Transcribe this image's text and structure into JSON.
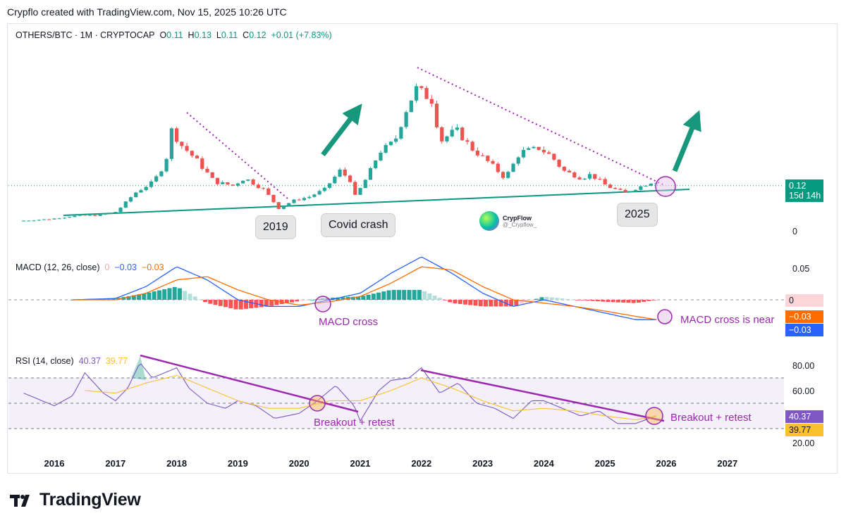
{
  "header": {
    "title": "Crypflo created with TradingView.com, Nov 15, 2025 10:26 UTC"
  },
  "legend": {
    "symbol": "OTHERS/BTC · 1M · CRYPTOCAP",
    "o_label": "O",
    "o_value": "0.11",
    "h_label": "H",
    "h_value": "0.13",
    "l_label": "L",
    "l_value": "0.11",
    "c_label": "C",
    "c_value": "0.12",
    "change": "+0.01 (+7.83%)"
  },
  "macd_legend": {
    "name": "MACD (12, 26, close)",
    "hist": "0",
    "macd": "−0.03",
    "signal": "−0.03"
  },
  "rsi_legend": {
    "name": "RSI (14, close)",
    "rsi": "40.37",
    "ma": "39.77"
  },
  "price_tag": {
    "value": "0.12",
    "countdown": "15d 14h"
  },
  "axes": {
    "price_zero": "0",
    "macd_ticks": [
      "0.05",
      "0"
    ],
    "macd_tags": [
      "−0.03",
      "−0.03"
    ],
    "rsi_ticks": [
      "80.00",
      "60.00",
      "20.00"
    ],
    "rsi_tags": [
      "40.37",
      "39.77"
    ]
  },
  "callouts": {
    "c2019": "2019",
    "covid": "Covid crash",
    "c2025": "2025"
  },
  "annotations": {
    "macd_cross": "MACD cross",
    "macd_near": "MACD cross is near",
    "breakout1": "Breakout + retest",
    "breakout2": "Breakout + retest"
  },
  "watermark": {
    "name": "CrypFlow",
    "handle": "@_Crypflow_"
  },
  "footer": {
    "brand": "TradingView"
  },
  "colors": {
    "up": "#26a69a",
    "down": "#ef5350",
    "teal": "#089981",
    "purple": "#9c27b0",
    "rsi": "#7e57c2",
    "rsi_ma": "#fbc02d",
    "macd": "#2962ff",
    "signal": "#ff6d00"
  },
  "chart_data": {
    "type": "candlestick",
    "title": "OTHERS/BTC · 1M · CRYPTOCAP",
    "x_axis_years": [
      "2016",
      "2017",
      "2018",
      "2019",
      "2020",
      "2021",
      "2022",
      "2023",
      "2024",
      "2025",
      "2026",
      "2027"
    ],
    "ohlc_last": {
      "open": 0.11,
      "high": 0.13,
      "low": 0.11,
      "close": 0.12,
      "change": 0.01,
      "change_pct": 7.83
    },
    "price_path_keypoints": [
      [
        2015.5,
        0.015
      ],
      [
        2016.0,
        0.02
      ],
      [
        2016.5,
        0.03
      ],
      [
        2016.8,
        0.03
      ],
      [
        2017.1,
        0.04
      ],
      [
        2017.4,
        0.09
      ],
      [
        2017.7,
        0.12
      ],
      [
        2017.9,
        0.17
      ],
      [
        2018.0,
        0.26
      ],
      [
        2018.15,
        0.22
      ],
      [
        2018.4,
        0.18
      ],
      [
        2018.7,
        0.12
      ],
      [
        2019.0,
        0.11
      ],
      [
        2019.2,
        0.13
      ],
      [
        2019.5,
        0.1
      ],
      [
        2019.75,
        0.05
      ],
      [
        2020.0,
        0.07
      ],
      [
        2020.25,
        0.08
      ],
      [
        2020.5,
        0.1
      ],
      [
        2020.75,
        0.15
      ],
      [
        2020.95,
        0.12
      ],
      [
        2021.0,
        0.08
      ],
      [
        2021.15,
        0.12
      ],
      [
        2021.4,
        0.2
      ],
      [
        2021.65,
        0.23
      ],
      [
        2021.85,
        0.32
      ],
      [
        2022.0,
        0.37
      ],
      [
        2022.25,
        0.34
      ],
      [
        2022.4,
        0.23
      ],
      [
        2022.65,
        0.26
      ],
      [
        2022.9,
        0.21
      ],
      [
        2023.2,
        0.17
      ],
      [
        2023.45,
        0.13
      ],
      [
        2023.7,
        0.2
      ],
      [
        2024.0,
        0.21
      ],
      [
        2024.2,
        0.19
      ],
      [
        2024.4,
        0.15
      ],
      [
        2024.7,
        0.13
      ],
      [
        2024.85,
        0.14
      ],
      [
        2025.1,
        0.11
      ],
      [
        2025.4,
        0.09
      ],
      [
        2025.7,
        0.11
      ],
      [
        2025.85,
        0.12
      ]
    ],
    "macd": {
      "params": "12, 26, close",
      "value": -0.03,
      "signal_value": -0.03,
      "hist_value": 0,
      "macd_keypoints": [
        [
          2016.3,
          0.0
        ],
        [
          2017.0,
          0.002
        ],
        [
          2017.5,
          0.02
        ],
        [
          2018.0,
          0.05
        ],
        [
          2018.5,
          0.03
        ],
        [
          2019.0,
          0.0
        ],
        [
          2019.5,
          -0.01
        ],
        [
          2020.0,
          -0.01
        ],
        [
          2020.5,
          0.0
        ],
        [
          2021.0,
          0.01
        ],
        [
          2021.5,
          0.04
        ],
        [
          2022.0,
          0.065
        ],
        [
          2022.5,
          0.04
        ],
        [
          2023.0,
          0.01
        ],
        [
          2023.5,
          -0.01
        ],
        [
          2024.0,
          0.0
        ],
        [
          2024.5,
          -0.01
        ],
        [
          2025.0,
          -0.02
        ],
        [
          2025.5,
          -0.03
        ],
        [
          2025.85,
          -0.03
        ]
      ],
      "signal_keypoints": [
        [
          2016.3,
          0.0
        ],
        [
          2017.0,
          0.0
        ],
        [
          2017.5,
          0.01
        ],
        [
          2018.0,
          0.03
        ],
        [
          2018.5,
          0.035
        ],
        [
          2019.0,
          0.015
        ],
        [
          2019.5,
          0.0
        ],
        [
          2020.0,
          -0.008
        ],
        [
          2020.5,
          -0.003
        ],
        [
          2021.0,
          0.005
        ],
        [
          2021.5,
          0.025
        ],
        [
          2022.0,
          0.05
        ],
        [
          2022.5,
          0.045
        ],
        [
          2023.0,
          0.02
        ],
        [
          2023.5,
          0.0
        ],
        [
          2024.0,
          -0.005
        ],
        [
          2024.5,
          -0.01
        ],
        [
          2025.0,
          -0.017
        ],
        [
          2025.5,
          -0.025
        ],
        [
          2025.85,
          -0.03
        ]
      ]
    },
    "rsi": {
      "params": "14, close",
      "value": 40.37,
      "ma_value": 39.77,
      "upper_band": 70,
      "middle_band": 50,
      "lower_band": 30,
      "ticks": [
        80,
        60,
        20
      ],
      "rsi_keypoints": [
        [
          2015.5,
          58
        ],
        [
          2015.8,
          52
        ],
        [
          2016.0,
          48
        ],
        [
          2016.3,
          56
        ],
        [
          2016.5,
          74
        ],
        [
          2016.8,
          58
        ],
        [
          2017.0,
          52
        ],
        [
          2017.2,
          62
        ],
        [
          2017.4,
          82
        ],
        [
          2017.6,
          70
        ],
        [
          2018.0,
          78
        ],
        [
          2018.2,
          62
        ],
        [
          2018.5,
          50
        ],
        [
          2018.8,
          46
        ],
        [
          2019.0,
          52
        ],
        [
          2019.3,
          48
        ],
        [
          2019.6,
          38
        ],
        [
          2020.0,
          42
        ],
        [
          2020.3,
          52
        ],
        [
          2020.6,
          64
        ],
        [
          2020.9,
          48
        ],
        [
          2021.0,
          36
        ],
        [
          2021.3,
          60
        ],
        [
          2021.5,
          68
        ],
        [
          2021.8,
          70
        ],
        [
          2022.0,
          78
        ],
        [
          2022.3,
          58
        ],
        [
          2022.6,
          66
        ],
        [
          2022.9,
          50
        ],
        [
          2023.2,
          46
        ],
        [
          2023.5,
          38
        ],
        [
          2023.8,
          52
        ],
        [
          2024.0,
          52
        ],
        [
          2024.3,
          46
        ],
        [
          2024.6,
          40
        ],
        [
          2024.9,
          44
        ],
        [
          2025.2,
          34
        ],
        [
          2025.5,
          34
        ],
        [
          2025.85,
          40.37
        ]
      ],
      "ma_keypoints": [
        [
          2016.5,
          60
        ],
        [
          2017.0,
          58
        ],
        [
          2017.5,
          66
        ],
        [
          2018.0,
          72
        ],
        [
          2018.5,
          62
        ],
        [
          2019.0,
          52
        ],
        [
          2019.5,
          46
        ],
        [
          2020.0,
          46
        ],
        [
          2020.5,
          52
        ],
        [
          2021.0,
          52
        ],
        [
          2021.5,
          60
        ],
        [
          2022.0,
          70
        ],
        [
          2022.5,
          62
        ],
        [
          2023.0,
          52
        ],
        [
          2023.5,
          44
        ],
        [
          2024.0,
          46
        ],
        [
          2024.5,
          44
        ],
        [
          2025.0,
          40
        ],
        [
          2025.5,
          37
        ],
        [
          2025.85,
          39.77
        ]
      ]
    }
  }
}
